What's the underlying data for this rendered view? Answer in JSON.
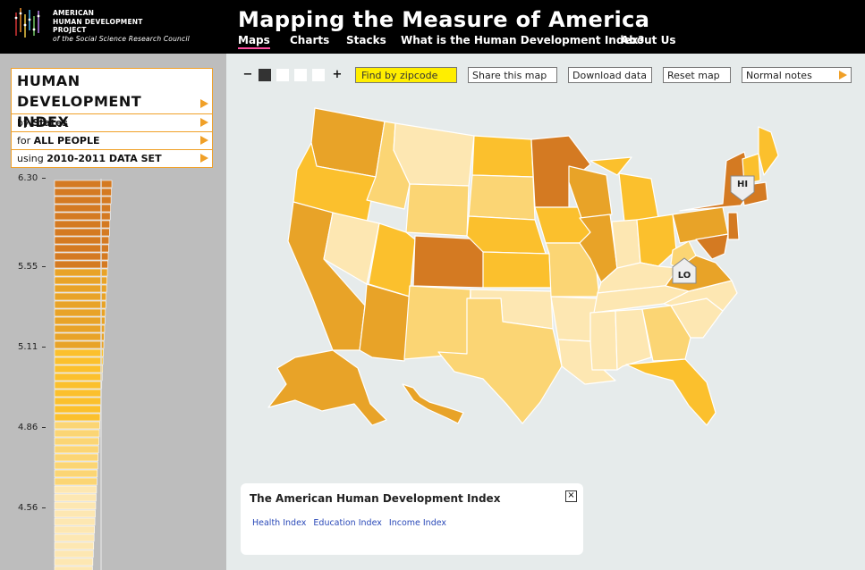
{
  "logo": {
    "line1": "AMERICAN",
    "line2": "HUMAN DEVELOPMENT",
    "line3": "PROJECT",
    "line4": "of the Social Science Research Council"
  },
  "site_title": "Mapping the Measure of America",
  "nav": [
    "Maps",
    "Charts",
    "Stacks",
    "What is the Human Development Index?",
    "About Us"
  ],
  "panel": {
    "title_line1": "HUMAN DEVELOPMENT",
    "title_line2": "INDEX",
    "by_prefix": "by",
    "by_value": "States",
    "for_prefix": "for",
    "for_value": "ALL PEOPLE",
    "using_prefix": "using",
    "using_value": "2010-2011 DATA SET"
  },
  "axis_ticks": [
    "6.30",
    "5.55",
    "5.11",
    "4.86",
    "4.56"
  ],
  "toolbar": {
    "zoom_out": "−",
    "zoom_in": "+",
    "zipcode": "Find by zipcode",
    "share": "Share this map",
    "download": "Download data",
    "reset": "Reset map",
    "notes": "Normal notes"
  },
  "markers": {
    "high": "HI",
    "low": "LO"
  },
  "legend": {
    "title": "The American Human Development Index",
    "links": [
      "Health Index",
      "Education Index",
      "Income Index"
    ],
    "close": "×"
  },
  "colors": {
    "accent": "#f0a028",
    "nav_active_underline": "#ff4fa0",
    "zipcode_bg": "#ffee00",
    "scale_darkest": "#d47a22",
    "scale_dark": "#e8a328",
    "scale_mid": "#fbc02d",
    "scale_light": "#fbd574",
    "scale_lightest": "#fde7b2"
  }
}
